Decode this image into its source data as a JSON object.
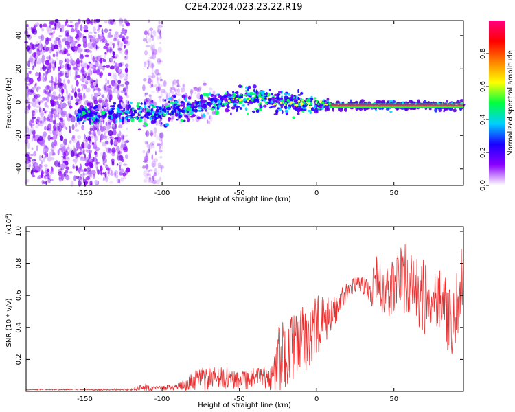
{
  "title": "C2E4.2024.023.23.22.R19",
  "chart_data": [
    {
      "type": "heatmap",
      "xlabel": "Height of straight line (km)",
      "ylabel": "Frequency (Hz)",
      "xlim": [
        -188,
        95
      ],
      "ylim": [
        -50,
        49
      ],
      "xticks": [
        -150,
        -100,
        -50,
        0,
        50
      ],
      "yticks": [
        -40,
        -20,
        0,
        20,
        40
      ],
      "colorbar": {
        "label": "Normalized spectral amplitude",
        "range": [
          0,
          1
        ],
        "ticks": [
          0.0,
          0.2,
          0.4,
          0.6,
          0.8
        ],
        "colors": [
          "#ffffff",
          "#8a00ff",
          "#1a00ff",
          "#00d0ff",
          "#00ff40",
          "#ffff00",
          "#ff8000",
          "#ff0000",
          "#ff0080"
        ]
      },
      "ridge": {
        "x": [
          -150,
          -125,
          -100,
          -80,
          -60,
          -45,
          -35,
          -25,
          -10,
          0,
          10,
          30,
          60,
          95
        ],
        "y": [
          -8,
          -7,
          -6,
          -3,
          1,
          2,
          3,
          0,
          -1,
          -1,
          -2,
          -2,
          -2,
          -2
        ]
      }
    },
    {
      "type": "line",
      "xlabel": "Height of straight line (km)",
      "ylabel": "SNR (10 * v/v)",
      "multiplier": "(x10^4)",
      "multiplier_base": "(x10",
      "multiplier_exp": "4",
      "multiplier_close": ")",
      "xlim": [
        -188,
        95
      ],
      "ylim": [
        0,
        1.03
      ],
      "xticks": [
        -150,
        -100,
        -50,
        0,
        50
      ],
      "yticks": [
        0.2,
        0.4,
        0.6,
        0.8,
        1.0
      ],
      "color": "#e83030",
      "envelope": {
        "x": [
          -188,
          -120,
          -112,
          -105,
          -90,
          -82,
          -75,
          -65,
          -55,
          -45,
          -35,
          -28,
          -25,
          -20,
          -10,
          0,
          10,
          20,
          27,
          35,
          40,
          45,
          55,
          60,
          70,
          80,
          88,
          93,
          95
        ],
        "base": [
          0.01,
          0.01,
          0.012,
          0.015,
          0.02,
          0.03,
          0.05,
          0.06,
          0.06,
          0.06,
          0.06,
          0.06,
          0.1,
          0.18,
          0.25,
          0.33,
          0.45,
          0.62,
          0.67,
          0.6,
          0.65,
          0.55,
          0.65,
          0.6,
          0.5,
          0.55,
          0.3,
          0.6,
          0.6
        ],
        "amp": [
          0.005,
          0.008,
          0.05,
          0.02,
          0.03,
          0.08,
          0.12,
          0.1,
          0.1,
          0.1,
          0.1,
          0.12,
          0.35,
          0.3,
          0.3,
          0.3,
          0.15,
          0.08,
          0.06,
          0.15,
          0.25,
          0.25,
          0.35,
          0.3,
          0.35,
          0.3,
          0.3,
          0.35,
          0.35
        ]
      }
    }
  ]
}
